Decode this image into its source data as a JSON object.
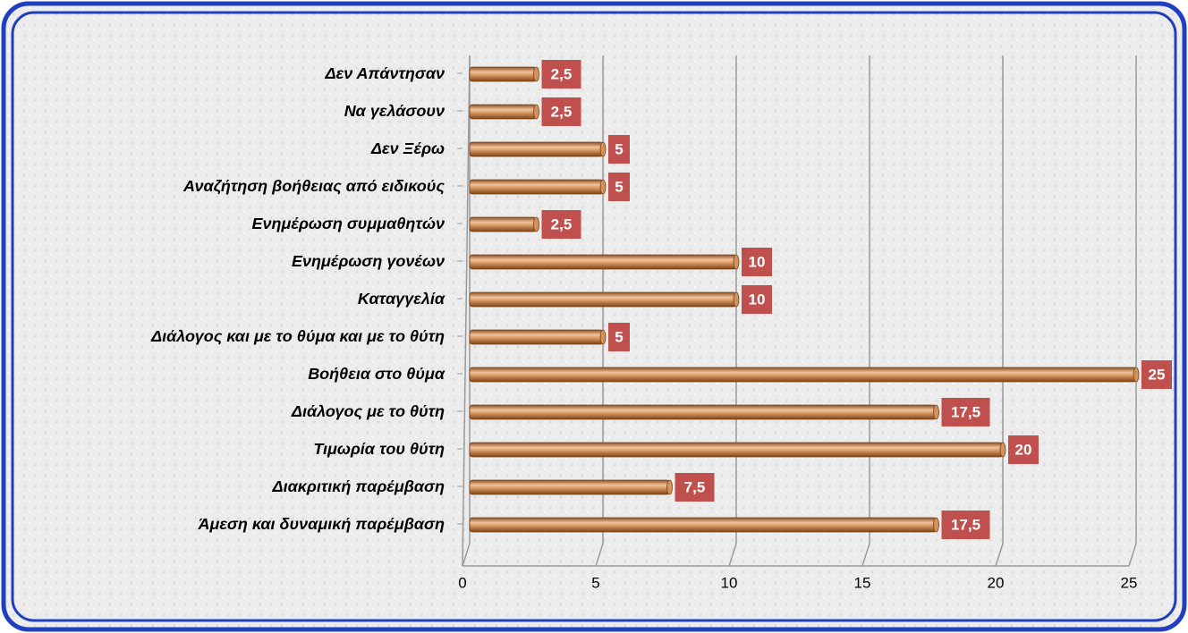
{
  "chart_data": {
    "type": "hbar",
    "categories": [
      "Δεν Απάντησαν",
      "Να γελάσουν",
      "Δεν Ξέρω",
      "Αναζήτηση βοήθειας από ειδικούς",
      "Ενημέρωση συμμαθητών",
      "Ενημέρωση γονέων",
      "Καταγγελία",
      "Διάλογος και με το θύμα και με το θύτη",
      "Βοήθεια στο θύμα",
      "Διάλογος με το θύτη",
      "Τιμωρία του θύτη",
      "Διακριτική παρέμβαση",
      "Άμεση και δυναμική παρέμβαση"
    ],
    "values": [
      2.5,
      2.5,
      5,
      5,
      2.5,
      10,
      10,
      5,
      25,
      17.5,
      20,
      7.5,
      17.5
    ],
    "value_labels": [
      "2,5",
      "2,5",
      "5",
      "5",
      "2,5",
      "10",
      "10",
      "5",
      "25",
      "17,5",
      "20",
      "7,5",
      "17,5"
    ],
    "color": "#d2925c",
    "label_color": "#c0504d",
    "xlim": [
      0,
      25
    ],
    "xticks": [
      0,
      5,
      10,
      15,
      20,
      25
    ],
    "grid": true
  }
}
